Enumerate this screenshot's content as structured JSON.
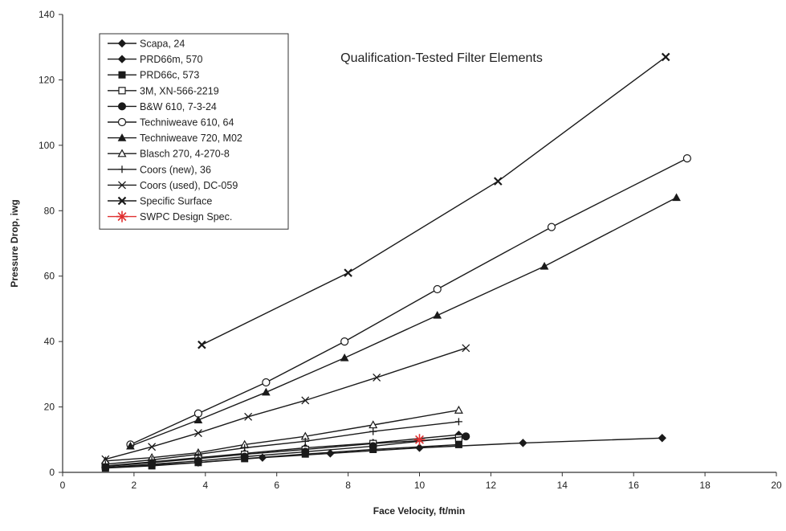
{
  "chart_data": {
    "type": "line",
    "title": "Qualification-Tested Filter Elements",
    "xlabel": "Face Velocity, ft/min",
    "ylabel": "Pressure Drop, iwg",
    "xlim": [
      0,
      20
    ],
    "ylim": [
      0,
      140
    ],
    "x_ticks": [
      "0",
      "2",
      "4",
      "6",
      "8",
      "10",
      "12",
      "14",
      "16",
      "18",
      "20"
    ],
    "y_ticks": [
      "0",
      "20",
      "40",
      "60",
      "80",
      "100",
      "120",
      "140"
    ],
    "grid": false,
    "legend_position": "top-left",
    "series": [
      {
        "name": "Scapa, 24",
        "marker": "diamond-filled",
        "color": "#1a1a1a",
        "x": [
          1.2,
          3.8,
          5.6,
          7.5,
          10.0,
          12.9,
          16.8
        ],
        "y": [
          1.5,
          3.0,
          4.5,
          5.8,
          7.5,
          9.0,
          10.5
        ]
      },
      {
        "name": "PRD66m, 570",
        "marker": "diamond-filled",
        "color": "#1a1a1a",
        "x": [
          1.2,
          2.5,
          3.8,
          5.1,
          6.8,
          8.7,
          11.1
        ],
        "y": [
          2.0,
          3.2,
          4.5,
          5.8,
          7.5,
          9.0,
          11.5
        ]
      },
      {
        "name": "PRD66c, 573",
        "marker": "square-filled",
        "color": "#1a1a1a",
        "x": [
          1.2,
          2.5,
          3.8,
          5.1,
          6.8,
          8.7,
          11.1
        ],
        "y": [
          1.3,
          2.0,
          3.0,
          4.2,
          5.6,
          7.0,
          8.5
        ]
      },
      {
        "name": "3M, XN-566-2219",
        "marker": "square-open",
        "color": "#1a1a1a",
        "x": [
          1.2,
          2.5,
          3.8,
          5.1,
          6.8,
          8.7,
          11.1
        ],
        "y": [
          1.8,
          3.0,
          4.2,
          5.5,
          7.0,
          8.8,
          10.5
        ]
      },
      {
        "name": "B&W 610, 7-3-24",
        "marker": "circle-filled",
        "color": "#1a1a1a",
        "x": [
          1.2,
          2.5,
          3.8,
          5.1,
          6.8,
          8.7,
          11.3
        ],
        "y": [
          1.5,
          2.5,
          3.5,
          4.8,
          6.3,
          8.0,
          11.0
        ]
      },
      {
        "name": "Techniweave 610, 64",
        "marker": "circle-open",
        "color": "#1a1a1a",
        "x": [
          1.9,
          3.8,
          5.7,
          7.9,
          10.5,
          13.7,
          17.5
        ],
        "y": [
          8.5,
          18.0,
          27.5,
          40.0,
          56.0,
          75.0,
          96.0
        ]
      },
      {
        "name": "Techniweave 720, M02",
        "marker": "triangle-filled",
        "color": "#1a1a1a",
        "x": [
          1.9,
          3.8,
          5.7,
          7.9,
          10.5,
          13.5,
          17.2
        ],
        "y": [
          8.0,
          16.0,
          24.5,
          35.0,
          48.0,
          63.0,
          84.0
        ]
      },
      {
        "name": "Blasch 270, 4-270-8",
        "marker": "triangle-open",
        "color": "#1a1a1a",
        "x": [
          1.2,
          2.5,
          3.8,
          5.1,
          6.8,
          8.7,
          11.1
        ],
        "y": [
          3.5,
          4.5,
          6.0,
          8.5,
          11.0,
          14.5,
          19.0
        ]
      },
      {
        "name": "Coors (new), 36",
        "marker": "plus",
        "color": "#1a1a1a",
        "x": [
          1.2,
          2.5,
          3.8,
          5.1,
          6.8,
          8.7,
          11.1
        ],
        "y": [
          2.5,
          3.8,
          5.5,
          7.5,
          9.5,
          12.5,
          15.5
        ]
      },
      {
        "name": "Coors (used), DC-059",
        "marker": "x",
        "color": "#1a1a1a",
        "x": [
          1.2,
          2.5,
          3.8,
          5.2,
          6.8,
          8.8,
          11.3
        ],
        "y": [
          4.0,
          7.8,
          12.0,
          17.0,
          22.0,
          29.0,
          38.0
        ]
      },
      {
        "name": "Specific Surface",
        "marker": "x-bold",
        "color": "#1a1a1a",
        "x": [
          3.9,
          8.0,
          12.2,
          16.9
        ],
        "y": [
          39.0,
          61.0,
          89.0,
          127.0
        ]
      },
      {
        "name": "SWPC Design Spec.",
        "marker": "asterisk",
        "color": "#e03030",
        "x": [
          10.0
        ],
        "y": [
          10.0
        ]
      }
    ]
  }
}
